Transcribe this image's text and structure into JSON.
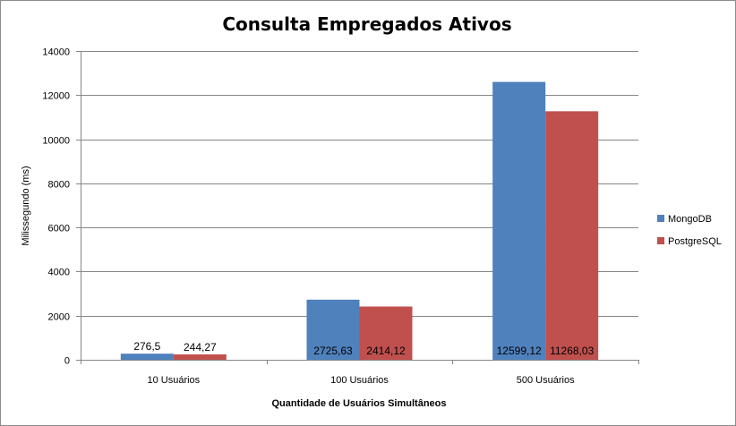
{
  "chart_data": {
    "type": "bar",
    "title": "Consulta Empregados Ativos",
    "xlabel": "Quantidade de Usuários Simultâneos",
    "ylabel": "Milissegundo (ms)",
    "categories": [
      "10 Usuários",
      "100 Usuários",
      "500 Usuários"
    ],
    "series": [
      {
        "name": "MongoDB",
        "color": "#4f81bd",
        "values": [
          276.5,
          2725.63,
          12599.12
        ],
        "labels": [
          "276,5",
          "2725,63",
          "12599,12"
        ]
      },
      {
        "name": "PostgreSQL",
        "color": "#c0504d",
        "values": [
          244.27,
          2414.12,
          11268.03
        ],
        "labels": [
          "244,27",
          "2414,12",
          "11268,03"
        ]
      }
    ],
    "ylim": [
      0,
      14000
    ],
    "yticks": [
      0,
      2000,
      4000,
      6000,
      8000,
      10000,
      12000,
      14000
    ],
    "grid": true,
    "legend_position": "right"
  }
}
